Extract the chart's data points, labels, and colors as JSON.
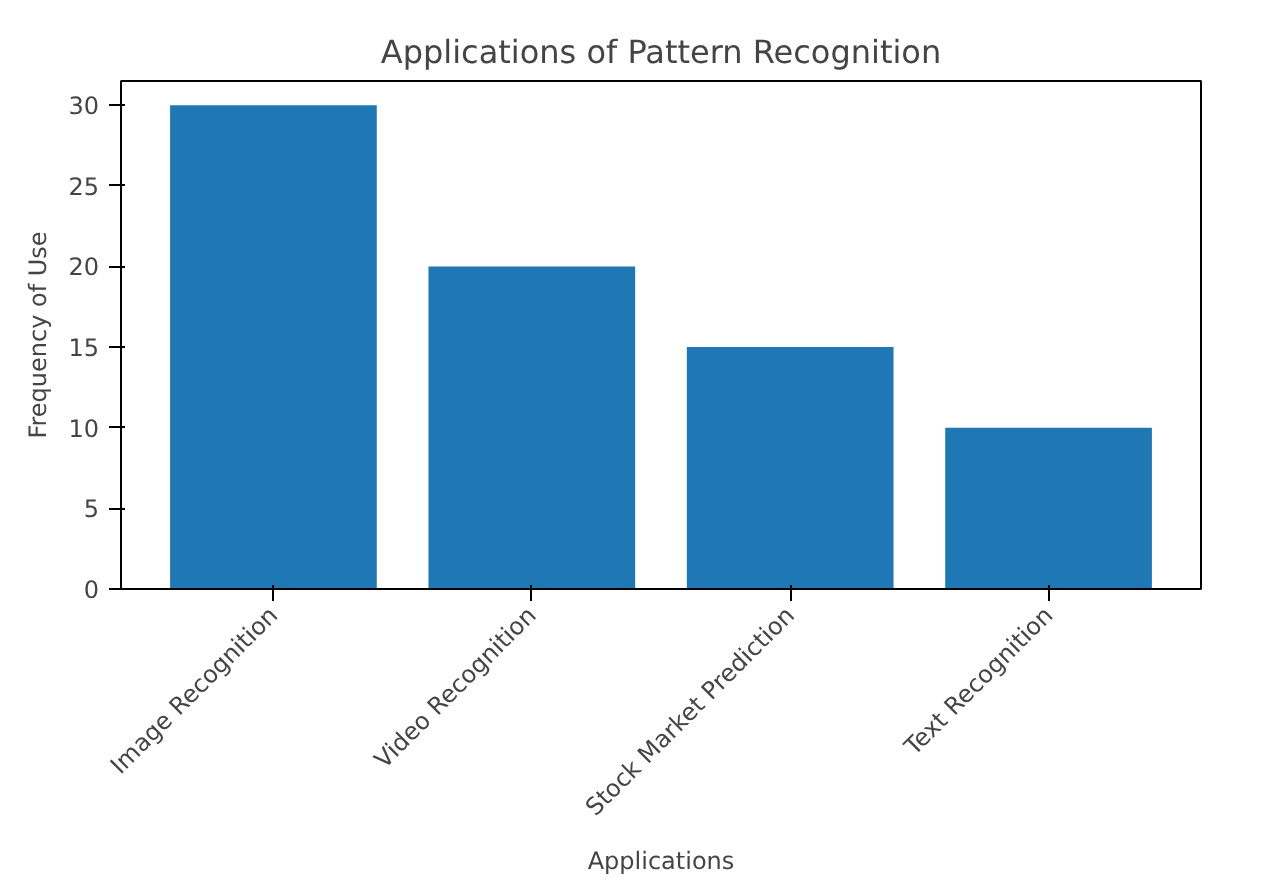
{
  "chart_data": {
    "type": "bar",
    "title": "Applications of Pattern Recognition",
    "xlabel": "Applications",
    "ylabel": "Frequency of Use",
    "categories": [
      "Image Recognition",
      "Video Recognition",
      "Stock Market Prediction",
      "Text Recognition"
    ],
    "values": [
      30,
      20,
      15,
      10
    ],
    "color": "#1f77b4",
    "ylim": [
      0,
      31.5
    ],
    "yticks": [
      0,
      5,
      10,
      15,
      20,
      25,
      30
    ],
    "grid": false
  }
}
